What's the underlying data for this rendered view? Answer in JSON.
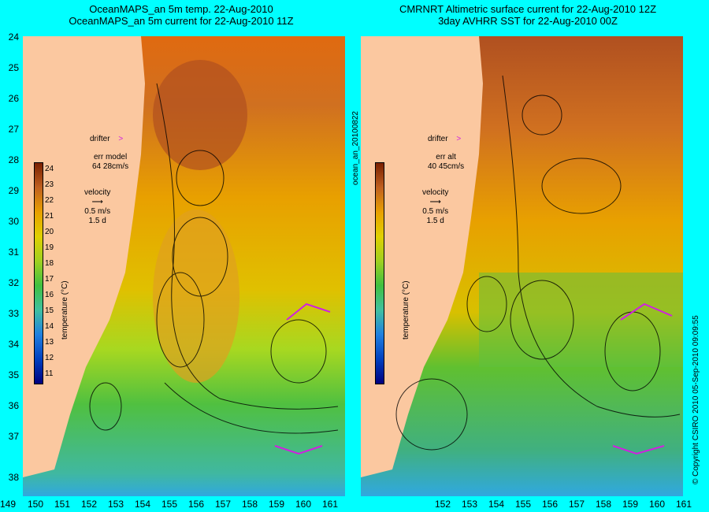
{
  "left_panel": {
    "title_line1": "OceanMAPS_an 5m temp. 22-Aug-2010",
    "title_line2": "OceanMAPS_an 5m current for 22-Aug-2010 11Z",
    "drifter_label": "drifter",
    "err_label": "err model",
    "err_value": "64 28cm/s",
    "velocity_label": "velocity",
    "velocity_scale": "0.5 m/s",
    "velocity_days": "1.5 d"
  },
  "right_panel": {
    "title_line1": "CMRNRT Altimetric surface current for 22-Aug-2010 12Z",
    "title_line2": "3day AVHRR SST for 22-Aug-2010 00Z",
    "drifter_label": "drifter",
    "err_label": "err alt",
    "err_value": "40 45cm/s",
    "velocity_label": "velocity",
    "velocity_scale": "0.5 m/s",
    "velocity_days": "1.5 d"
  },
  "colorbar": {
    "label": "temperature (°C)",
    "ticks": [
      "24",
      "23",
      "22",
      "21",
      "20",
      "19",
      "18",
      "17",
      "16",
      "15",
      "14",
      "13",
      "12",
      "11"
    ]
  },
  "side_label": "ocean_an_20100822",
  "copyright": "© Copyright CSIRO 2010   05-Sep-2010 09:09:55",
  "y_axis_ticks": [
    "24",
    "25",
    "26",
    "27",
    "28",
    "29",
    "30",
    "31",
    "32",
    "33",
    "34",
    "35",
    "36",
    "37",
    "38"
  ],
  "x_axis_ticks_left": [
    "149",
    "150",
    "151",
    "152",
    "153",
    "154",
    "155",
    "156",
    "157",
    "158",
    "159",
    "160",
    "161"
  ],
  "x_axis_ticks_right": [
    "152",
    "153",
    "154",
    "155",
    "156",
    "157",
    "158",
    "159",
    "160",
    "161"
  ],
  "colors": {
    "background": "#00ffff",
    "land": "#fbc8a0",
    "warm": "#b05020",
    "mid": "#e8a000",
    "cool": "#40c040",
    "drifter": "#d020e0"
  }
}
